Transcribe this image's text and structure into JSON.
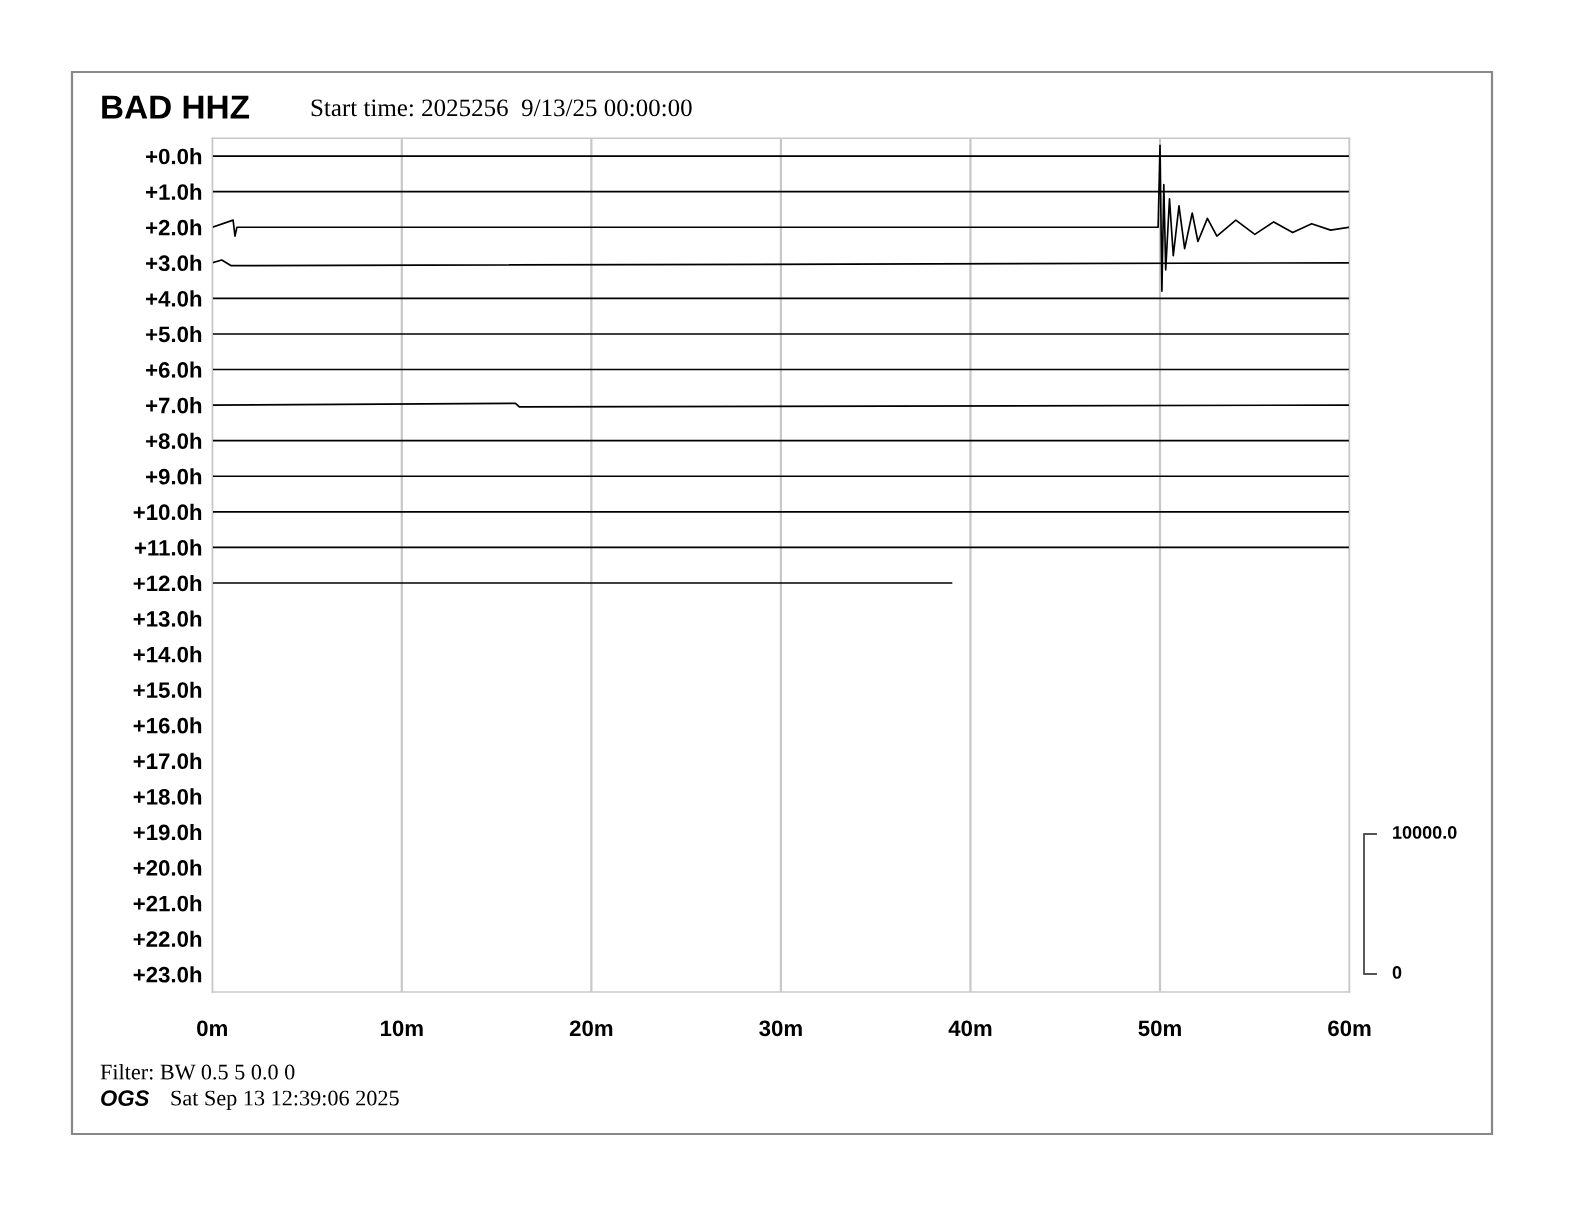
{
  "chart_data": {
    "type": "line",
    "title": "BAD HHZ",
    "subtitle": "Start time: 2025256  9/13/25 00:00:00",
    "annotations": [
      "Filter: BW 0.5 5 0.0 0",
      "OGS",
      "Sat Sep 13 12:39:06 2025",
      "10000.0",
      "0"
    ],
    "xlim": [
      0,
      60
    ],
    "xticks": [
      {
        "value": 0,
        "label": "0m"
      },
      {
        "value": 10,
        "label": "10m"
      },
      {
        "value": 20,
        "label": "20m"
      },
      {
        "value": 30,
        "label": "30m"
      },
      {
        "value": 40,
        "label": "40m"
      },
      {
        "value": 50,
        "label": "50m"
      },
      {
        "value": 60,
        "label": "60m"
      }
    ],
    "ylim": [
      23.5,
      -0.5
    ],
    "yticks": [
      {
        "value": 0,
        "label": "+0.0h"
      },
      {
        "value": 1,
        "label": "+1.0h"
      },
      {
        "value": 2,
        "label": "+2.0h"
      },
      {
        "value": 3,
        "label": "+3.0h"
      },
      {
        "value": 4,
        "label": "+4.0h"
      },
      {
        "value": 5,
        "label": "+5.0h"
      },
      {
        "value": 6,
        "label": "+6.0h"
      },
      {
        "value": 7,
        "label": "+7.0h"
      },
      {
        "value": 8,
        "label": "+8.0h"
      },
      {
        "value": 9,
        "label": "+9.0h"
      },
      {
        "value": 10,
        "label": "+10.0h"
      },
      {
        "value": 11,
        "label": "+11.0h"
      },
      {
        "value": 12,
        "label": "+12.0h"
      },
      {
        "value": 13,
        "label": "+13.0h"
      },
      {
        "value": 14,
        "label": "+14.0h"
      },
      {
        "value": 15,
        "label": "+15.0h"
      },
      {
        "value": 16,
        "label": "+16.0h"
      },
      {
        "value": 17,
        "label": "+17.0h"
      },
      {
        "value": 18,
        "label": "+18.0h"
      },
      {
        "value": 19,
        "label": "+19.0h"
      },
      {
        "value": 20,
        "label": "+20.0h"
      },
      {
        "value": 21,
        "label": "+21.0h"
      },
      {
        "value": 22,
        "label": "+22.0h"
      },
      {
        "value": 23,
        "label": "+23.0h"
      }
    ],
    "grid": "x",
    "marker": "none",
    "line_style": "solid",
    "series": [
      {
        "color": "#000000",
        "x": [
          0,
          60
        ],
        "values": [
          0,
          0
        ]
      },
      {
        "color": "#000000",
        "x": [
          0,
          60
        ],
        "values": [
          1,
          1
        ]
      },
      {
        "color": "#000000",
        "x": [
          0,
          1.1,
          1.2,
          1.3,
          49.9,
          50.0,
          50.1,
          50.2,
          50.3,
          50.5,
          50.7,
          51.0,
          51.3,
          51.7,
          52.0,
          52.5,
          53.0,
          54.0,
          55.0,
          56.0,
          57.0,
          58.0,
          59.0,
          60
        ],
        "values": [
          2,
          1.8,
          2.25,
          2,
          2,
          -0.3,
          3.8,
          0.8,
          3.2,
          1.2,
          2.8,
          1.4,
          2.6,
          1.6,
          2.4,
          1.75,
          2.25,
          1.8,
          2.2,
          1.85,
          2.15,
          1.9,
          2.08,
          2
        ]
      },
      {
        "color": "#000000",
        "x": [
          0,
          0.5,
          1.0,
          60
        ],
        "values": [
          3,
          2.92,
          3.08,
          3
        ]
      },
      {
        "color": "#000000",
        "x": [
          0,
          60
        ],
        "values": [
          4,
          4
        ]
      },
      {
        "color": "#000000",
        "x": [
          0,
          60
        ],
        "values": [
          5,
          5
        ]
      },
      {
        "color": "#000000",
        "x": [
          0,
          60
        ],
        "values": [
          6,
          6
        ]
      },
      {
        "color": "#000000",
        "x": [
          0,
          16.0,
          16.2,
          60
        ],
        "values": [
          7,
          6.95,
          7.05,
          7
        ]
      },
      {
        "color": "#000000",
        "x": [
          0,
          60
        ],
        "values": [
          8,
          8
        ]
      },
      {
        "color": "#000000",
        "x": [
          0,
          60
        ],
        "values": [
          9,
          9
        ]
      },
      {
        "color": "#000000",
        "x": [
          0,
          60
        ],
        "values": [
          10,
          10
        ]
      },
      {
        "color": "#000000",
        "x": [
          0,
          60
        ],
        "values": [
          11,
          11
        ]
      },
      {
        "color": "#000000",
        "x": [
          0,
          39
        ],
        "values": [
          12,
          12
        ]
      }
    ]
  }
}
